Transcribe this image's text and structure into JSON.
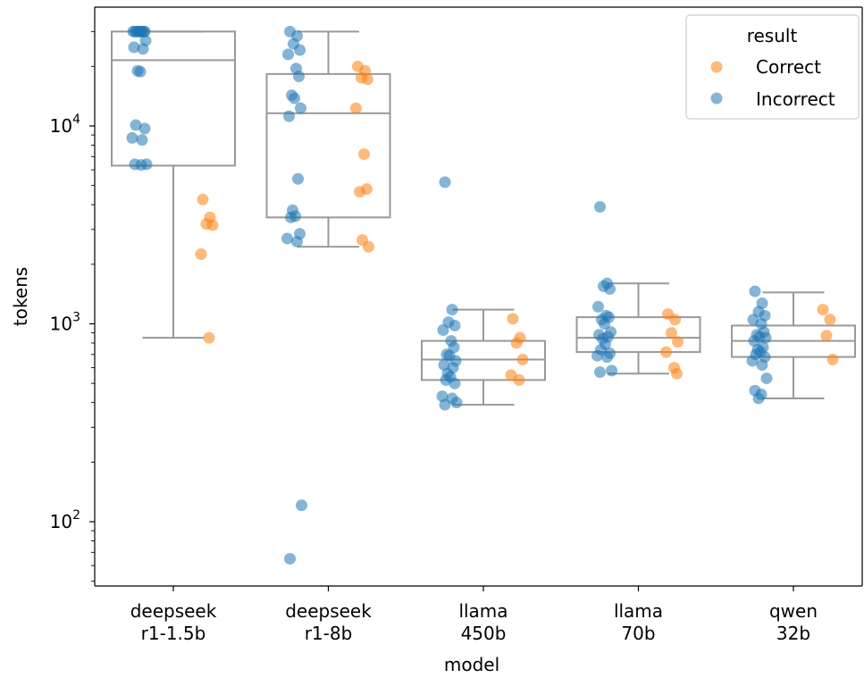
{
  "chart_data": {
    "type": "box",
    "xlabel": "model",
    "ylabel": "tokens",
    "yscale": "log",
    "ylim": [
      50,
      35000
    ],
    "categories": [
      [
        "deepseek",
        "r1-1.5b"
      ],
      [
        "deepseek",
        "r1-8b"
      ],
      [
        "llama",
        "450b"
      ],
      [
        "llama",
        "70b"
      ],
      [
        "qwen",
        "32b"
      ]
    ],
    "y_ticks": [
      {
        "base": "10",
        "exp": "2",
        "value": 100
      },
      {
        "base": "10",
        "exp": "3",
        "value": 1000
      },
      {
        "base": "10",
        "exp": "4",
        "value": 10000
      }
    ],
    "legend": {
      "title": "result",
      "position": "top-right",
      "entries": [
        {
          "label": "Correct",
          "color": "#ff7f0e"
        },
        {
          "label": "Incorrect",
          "color": "#1f77b4"
        }
      ]
    },
    "boxes": [
      {
        "category": 0,
        "q1": 6300,
        "median": 21500,
        "q3": 30000,
        "whisker_low": 850,
        "whisker_high": 30000
      },
      {
        "category": 1,
        "q1": 3450,
        "median": 11600,
        "q3": 18300,
        "whisker_low": 2450,
        "whisker_high": 30000
      },
      {
        "category": 2,
        "q1": 520,
        "median": 660,
        "q3": 820,
        "whisker_low": 390,
        "whisker_high": 1180
      },
      {
        "category": 3,
        "q1": 720,
        "median": 850,
        "q3": 1080,
        "whisker_low": 560,
        "whisker_high": 1600
      },
      {
        "category": 4,
        "q1": 680,
        "median": 820,
        "q3": 980,
        "whisker_low": 420,
        "whisker_high": 1440
      }
    ],
    "series": [
      {
        "name": "Incorrect",
        "color": "#1f77b4",
        "points": [
          {
            "category": 0,
            "values": [
              30000,
              30000,
              30000,
              30000,
              30000,
              30000,
              30000,
              30000,
              30000,
              27000,
              25000,
              24500,
              19000,
              18800,
              10100,
              9700,
              8700,
              8500,
              6400,
              6400,
              6350
            ]
          },
          {
            "category": 1,
            "values": [
              30000,
              28500,
              26000,
              24200,
              23000,
              19500,
              17800,
              14300,
              13800,
              12300,
              11200,
              5400,
              3750,
              3500,
              3450,
              2850,
              2700,
              2600,
              121,
              65
            ]
          },
          {
            "category": 2,
            "values": [
              5200,
              1180,
              1020,
              980,
              930,
              820,
              760,
              700,
              690,
              650,
              620,
              600,
              560,
              540,
              520,
              500,
              430,
              420,
              400,
              390
            ]
          },
          {
            "category": 3,
            "values": [
              3900,
              1600,
              1550,
              1500,
              1220,
              1100,
              1080,
              1050,
              1000,
              910,
              880,
              860,
              840,
              790,
              740,
              710,
              690,
              680,
              580,
              570
            ]
          },
          {
            "category": 4,
            "values": [
              1460,
              1270,
              1150,
              1100,
              1050,
              1000,
              910,
              880,
              860,
              850,
              820,
              760,
              740,
              720,
              700,
              680,
              650,
              620,
              530,
              460,
              440,
              420
            ]
          }
        ]
      },
      {
        "name": "Correct",
        "color": "#ff7f0e",
        "points": [
          {
            "category": 0,
            "values": [
              4250,
              3450,
              3200,
              3150,
              2250,
              850
            ]
          },
          {
            "category": 1,
            "values": [
              20000,
              19000,
              17500,
              17200,
              12300,
              7200,
              4800,
              4650,
              2650,
              2450
            ]
          },
          {
            "category": 2,
            "values": [
              1060,
              850,
              800,
              660,
              550,
              520
            ]
          },
          {
            "category": 3,
            "values": [
              1120,
              1050,
              900,
              810,
              720,
              600,
              560
            ]
          },
          {
            "category": 4,
            "values": [
              1180,
              1050,
              870,
              660
            ]
          }
        ]
      }
    ]
  }
}
